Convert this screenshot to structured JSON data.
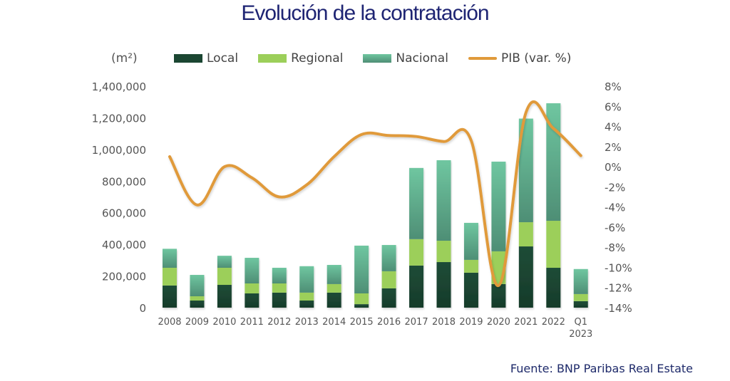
{
  "title": "Evolución de la contratación",
  "source": "Fuente:  BNP Paribas Real Estate",
  "colors": {
    "local": "#1b4632",
    "regional": "#9ccf5a",
    "nacional_top": "#6fc6a0",
    "nacional_bottom": "#4e8e75",
    "pib": "#e09a3a",
    "title": "#1e2473"
  },
  "chart_data": {
    "type": "bar",
    "stacked": true,
    "title": "Evolución de la contratación",
    "xlabel": "",
    "ylabel": "(m²)",
    "y2label": "",
    "categories": [
      "2008",
      "2009",
      "2010",
      "2011",
      "2012",
      "2013",
      "2014",
      "2015",
      "2016",
      "2017",
      "2018",
      "2019",
      "2020",
      "2021",
      "2022",
      "Q1 2023"
    ],
    "category_labels": [
      [
        "2008"
      ],
      [
        "2009"
      ],
      [
        "2010"
      ],
      [
        "2011"
      ],
      [
        "2012"
      ],
      [
        "2013"
      ],
      [
        "2014"
      ],
      [
        "2015"
      ],
      [
        "2016"
      ],
      [
        "2017"
      ],
      [
        "2018"
      ],
      [
        "2019"
      ],
      [
        "2020"
      ],
      [
        "2021"
      ],
      [
        "2022"
      ],
      [
        "Q1",
        "2023"
      ]
    ],
    "series": [
      {
        "name": "Local",
        "type": "bar",
        "axis": "left",
        "values": [
          140000,
          45000,
          144000,
          90000,
          95000,
          45000,
          95000,
          22000,
          122000,
          266000,
          288000,
          221000,
          149000,
          387000,
          252000,
          41000
        ]
      },
      {
        "name": "Regional",
        "type": "bar",
        "axis": "left",
        "values": [
          112000,
          27000,
          108000,
          63000,
          58000,
          50000,
          54000,
          68000,
          108000,
          167000,
          135000,
          81000,
          207000,
          153000,
          297000,
          45000
        ]
      },
      {
        "name": "Nacional",
        "type": "bar",
        "axis": "left",
        "values": [
          120000,
          135000,
          76000,
          162000,
          99000,
          167000,
          121000,
          302000,
          166000,
          450000,
          509000,
          234000,
          567000,
          655000,
          743000,
          158000
        ]
      },
      {
        "name": "PIB (var. %)",
        "type": "line",
        "axis": "right",
        "values": [
          1.0,
          -3.8,
          0.0,
          -1.1,
          -3.0,
          -1.8,
          1.0,
          3.2,
          3.1,
          3.0,
          2.5,
          2.6,
          -11.8,
          5.4,
          3.8,
          1.1
        ]
      }
    ],
    "ylim": [
      0,
      1400000
    ],
    "yticks": [
      0,
      200000,
      400000,
      600000,
      800000,
      1000000,
      1200000,
      1400000
    ],
    "ytick_labels": [
      "0",
      "200,000",
      "400,000",
      "600,000",
      "800,000",
      "1,000,000",
      "1,200,000",
      "1,400,000"
    ],
    "y2lim": [
      -14,
      8
    ],
    "y2ticks": [
      -14,
      -12,
      -10,
      -8,
      -6,
      -4,
      -2,
      0,
      2,
      4,
      6,
      8
    ],
    "y2tick_labels": [
      "-14%",
      "-12%",
      "-10%",
      "-8%",
      "-6%",
      "-4%",
      "-2%",
      "0%",
      "2%",
      "4%",
      "6%",
      "8%"
    ],
    "grid": false,
    "legend": {
      "placement": "top",
      "entries": [
        "Local",
        "Regional",
        "Nacional",
        "PIB (var. %)"
      ]
    }
  }
}
